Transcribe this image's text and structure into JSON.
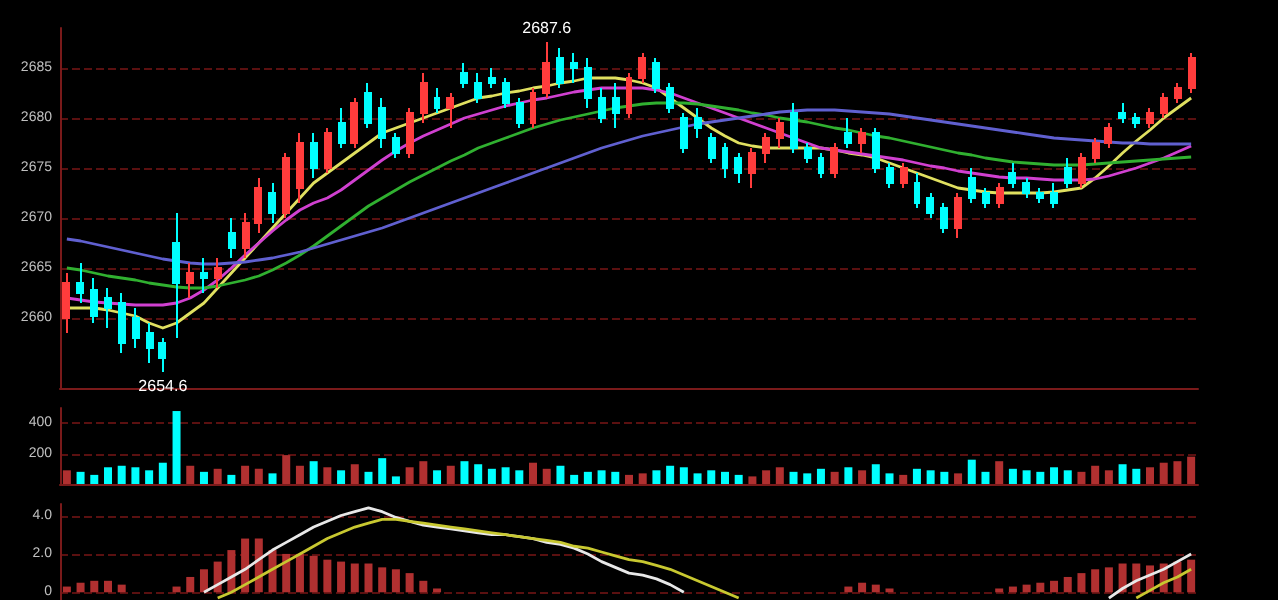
{
  "chart_data": [
    {
      "type": "candlestick",
      "categories": [
        null,
        null,
        null,
        null,
        null,
        null,
        null,
        null,
        null,
        null,
        null,
        null,
        null,
        null,
        null,
        null,
        null,
        null,
        null,
        null,
        null,
        null,
        null,
        null,
        null,
        null,
        null,
        null,
        null,
        null,
        null,
        null,
        null,
        null,
        null,
        null,
        null,
        null,
        null,
        null,
        null,
        null,
        null,
        null,
        null,
        null,
        null,
        null,
        null,
        null,
        null,
        null,
        null,
        null,
        null,
        null,
        null,
        null,
        null,
        null,
        null,
        null,
        null,
        null,
        null,
        null,
        null,
        null,
        null,
        null,
        null,
        null,
        null,
        null,
        null,
        null,
        null,
        null,
        null,
        null,
        null,
        null,
        null
      ],
      "ylim": [
        2653,
        2689
      ],
      "yticks": [
        2660,
        2665,
        2670,
        2675,
        2680,
        2685
      ],
      "grid": "y",
      "tick_labels": "y",
      "marker": "none",
      "annotations": [
        {
          "text": "2687.6",
          "y": 2687.6
        },
        {
          "text": "2654.6",
          "y": 2654.6
        }
      ],
      "series": [
        {
          "type": "line",
          "color": "#e0e060",
          "values": [
            2661,
            2661,
            2661,
            2660.8,
            2660.5,
            2660.2,
            2659.5,
            2659,
            2659.5,
            2660.5,
            2661.5,
            2663,
            2664.5,
            2666,
            2667.5,
            2669,
            2670.5,
            2672,
            2673.5,
            2674.5,
            2675.5,
            2676.5,
            2677.5,
            2678.5,
            2679,
            2679.5,
            2680,
            2680.5,
            2681,
            2681.5,
            2682,
            2682.2,
            2682.5,
            2682.7,
            2683,
            2683.2,
            2683.5,
            2683.7,
            2684,
            2684,
            2684,
            2683.8,
            2683.5,
            2683,
            2682,
            2681,
            2680,
            2679,
            2678.2,
            2677.5,
            2677.2,
            2677,
            2677,
            2677,
            2677,
            2677,
            2676.8,
            2676.5,
            2676.3,
            2676,
            2675.5,
            2675,
            2674.5,
            2674,
            2673.5,
            2673,
            2672.8,
            2672.6,
            2672.5,
            2672.5,
            2672.5,
            2672.5,
            2672.6,
            2672.8,
            2673,
            2674,
            2675.2,
            2676.5,
            2677.7,
            2678.8,
            2680,
            2681,
            2682
          ]
        },
        {
          "type": "line",
          "color": "#d040d0",
          "values": [
            2662,
            2661.8,
            2661.6,
            2661.5,
            2661.4,
            2661.3,
            2661.3,
            2661.3,
            2661.5,
            2662,
            2662.8,
            2663.8,
            2665,
            2666.3,
            2667.5,
            2668.7,
            2669.8,
            2670.8,
            2671.5,
            2672,
            2672.8,
            2673.8,
            2674.8,
            2675.8,
            2676.7,
            2677.5,
            2678.2,
            2678.8,
            2679.4,
            2680,
            2680.4,
            2680.8,
            2681.2,
            2681.5,
            2681.8,
            2682,
            2682.3,
            2682.6,
            2682.8,
            2683,
            2683,
            2683,
            2683,
            2682.8,
            2682.5,
            2682,
            2681.5,
            2681,
            2680.5,
            2680,
            2679.5,
            2679,
            2678.5,
            2678,
            2677.5,
            2677,
            2676.8,
            2676.6,
            2676.4,
            2676.2,
            2676,
            2675.8,
            2675.5,
            2675.2,
            2675,
            2674.7,
            2674.5,
            2674.3,
            2674.1,
            2674,
            2674,
            2673.9,
            2673.8,
            2673.8,
            2673.8,
            2673.9,
            2674.2,
            2674.6,
            2675,
            2675.5,
            2676,
            2676.6,
            2677.2
          ]
        },
        {
          "type": "line",
          "color": "#30b030",
          "values": [
            2665,
            2664.8,
            2664.5,
            2664.2,
            2664,
            2663.8,
            2663.5,
            2663.3,
            2663.1,
            2663,
            2663,
            2663.2,
            2663.5,
            2663.8,
            2664.2,
            2664.8,
            2665.5,
            2666.3,
            2667.2,
            2668.2,
            2669.2,
            2670.2,
            2671.2,
            2672,
            2672.8,
            2673.6,
            2674.3,
            2675,
            2675.7,
            2676.3,
            2677,
            2677.5,
            2678,
            2678.5,
            2679,
            2679.4,
            2679.8,
            2680.1,
            2680.4,
            2680.7,
            2681,
            2681.2,
            2681.4,
            2681.5,
            2681.5,
            2681.5,
            2681.4,
            2681.2,
            2681,
            2680.8,
            2680.5,
            2680.3,
            2680,
            2679.8,
            2679.6,
            2679.3,
            2679,
            2678.8,
            2678.5,
            2678.2,
            2678,
            2677.7,
            2677.4,
            2677.1,
            2676.8,
            2676.5,
            2676.3,
            2676,
            2675.8,
            2675.6,
            2675.5,
            2675.4,
            2675.3,
            2675.3,
            2675.3,
            2675.4,
            2675.5,
            2675.6,
            2675.7,
            2675.8,
            2675.9,
            2676,
            2676.1
          ]
        },
        {
          "type": "line",
          "color": "#6060d0",
          "values": [
            2667.9,
            2667.7,
            2667.4,
            2667.1,
            2666.8,
            2666.5,
            2666.2,
            2665.9,
            2665.7,
            2665.5,
            2665.4,
            2665.4,
            2665.5,
            2665.6,
            2665.8,
            2666,
            2666.3,
            2666.6,
            2667,
            2667.4,
            2667.8,
            2668.2,
            2668.6,
            2669,
            2669.5,
            2670,
            2670.5,
            2671,
            2671.5,
            2672,
            2672.5,
            2673,
            2673.5,
            2674,
            2674.5,
            2675,
            2675.5,
            2676,
            2676.5,
            2677,
            2677.4,
            2677.8,
            2678.2,
            2678.5,
            2678.8,
            2679.1,
            2679.4,
            2679.6,
            2679.8,
            2680,
            2680.2,
            2680.4,
            2680.6,
            2680.7,
            2680.8,
            2680.8,
            2680.8,
            2680.7,
            2680.6,
            2680.5,
            2680.4,
            2680.2,
            2680,
            2679.8,
            2679.6,
            2679.4,
            2679.2,
            2679,
            2678.8,
            2678.6,
            2678.4,
            2678.2,
            2678,
            2677.9,
            2677.8,
            2677.7,
            2677.6,
            2677.5,
            2677.5,
            2677.4,
            2677.4,
            2677.4,
            2677.4
          ]
        },
        {
          "colors": [
            "#ff3c3c",
            "#00ffff",
            "#00ffff",
            "#00ffff",
            "#00ffff",
            "#00ffff",
            "#00ffff",
            "#00ffff",
            "#00ffff",
            "#ff3c3c",
            "#00ffff",
            "#ff3c3c",
            "#00ffff",
            "#ff3c3c",
            "#ff3c3c",
            "#00ffff",
            "#ff3c3c",
            "#ff3c3c",
            "#00ffff",
            "#ff3c3c",
            "#00ffff",
            "#ff3c3c",
            "#00ffff",
            "#00ffff",
            "#00ffff",
            "#ff3c3c",
            "#ff3c3c",
            "#00ffff",
            "#ff3c3c",
            "#00ffff",
            "#00ffff",
            "#00ffff",
            "#00ffff",
            "#00ffff",
            "#ff3c3c",
            "#ff3c3c",
            "#00ffff",
            "#00ffff",
            "#00ffff",
            "#00ffff",
            "#00ffff",
            "#ff3c3c",
            "#ff3c3c",
            "#00ffff",
            "#00ffff",
            "#00ffff",
            "#00ffff",
            "#00ffff",
            "#00ffff",
            "#00ffff",
            "#ff3c3c",
            "#ff3c3c",
            "#ff3c3c",
            "#00ffff",
            "#00ffff",
            "#00ffff",
            "#ff3c3c",
            "#00ffff",
            "#ff3c3c",
            "#00ffff",
            "#00ffff",
            "#ff3c3c",
            "#00ffff",
            "#00ffff",
            "#00ffff",
            "#ff3c3c",
            "#00ffff",
            "#00ffff",
            "#ff3c3c",
            "#00ffff",
            "#00ffff",
            "#00ffff",
            "#00ffff",
            "#00ffff",
            "#ff3c3c",
            "#ff3c3c",
            "#ff3c3c",
            "#00ffff",
            "#00ffff",
            "#ff3c3c",
            "#ff3c3c",
            "#ff3c3c",
            "#ff3c3c"
          ],
          "ohlc": [
            [
              2660.0,
              2664.5,
              2658.5,
              2663.5
            ],
            [
              2663.5,
              2665.5,
              2661.5,
              2662.5
            ],
            [
              2662.8,
              2664.0,
              2659.5,
              2660.2
            ],
            [
              2662.0,
              2663.0,
              2659.0,
              2661.0
            ],
            [
              2661.5,
              2662.5,
              2656.5,
              2657.5
            ],
            [
              2660.0,
              2661.0,
              2657.0,
              2658.0
            ],
            [
              2658.5,
              2659.5,
              2655.5,
              2657.0
            ],
            [
              2657.5,
              2658.0,
              2654.6,
              2656.0
            ],
            [
              2667.5,
              2670.5,
              2658.0,
              2663.5
            ],
            [
              2663.5,
              2665.5,
              2662.0,
              2664.5
            ],
            [
              2664.5,
              2666.0,
              2662.5,
              2664.0
            ],
            [
              2664.0,
              2666.0,
              2663.0,
              2665.0
            ],
            [
              2668.5,
              2670.0,
              2666.0,
              2667.0
            ],
            [
              2667.0,
              2670.5,
              2666.0,
              2669.5
            ],
            [
              2669.5,
              2674.0,
              2668.5,
              2673.0
            ],
            [
              2672.5,
              2673.5,
              2669.5,
              2670.5
            ],
            [
              2670.5,
              2676.5,
              2670.0,
              2676.0
            ],
            [
              2673.0,
              2678.5,
              2671.5,
              2677.5
            ],
            [
              2677.5,
              2678.5,
              2674.0,
              2675.0
            ],
            [
              2675.0,
              2679.0,
              2674.5,
              2678.5
            ],
            [
              2679.5,
              2681.0,
              2677.0,
              2677.5
            ],
            [
              2677.5,
              2682.0,
              2677.0,
              2681.5
            ],
            [
              2682.5,
              2683.5,
              2679.0,
              2679.5
            ],
            [
              2681.0,
              2682.0,
              2677.0,
              2678.0
            ],
            [
              2678.0,
              2678.5,
              2676.0,
              2676.5
            ],
            [
              2676.5,
              2681.0,
              2676.0,
              2680.5
            ],
            [
              2680.5,
              2684.5,
              2679.5,
              2683.5
            ],
            [
              2682.0,
              2683.0,
              2680.5,
              2681.0
            ],
            [
              2681.0,
              2682.5,
              2679.0,
              2682.0
            ],
            [
              2684.5,
              2685.5,
              2683.0,
              2683.5
            ],
            [
              2683.5,
              2684.5,
              2681.5,
              2682.0
            ],
            [
              2684.0,
              2685.0,
              2683.0,
              2683.5
            ],
            [
              2683.5,
              2684.0,
              2681.0,
              2681.5
            ],
            [
              2681.5,
              2682.0,
              2679.0,
              2679.5
            ],
            [
              2679.5,
              2683.0,
              2679.0,
              2682.5
            ],
            [
              2682.5,
              2687.6,
              2682.0,
              2685.5
            ],
            [
              2686.0,
              2687.0,
              2683.0,
              2683.5
            ],
            [
              2685.5,
              2686.5,
              2683.5,
              2685.0
            ],
            [
              2685.0,
              2686.0,
              2681.0,
              2682.0
            ],
            [
              2682.0,
              2683.0,
              2679.5,
              2680.0
            ],
            [
              2682.0,
              2683.5,
              2679.0,
              2680.5
            ],
            [
              2680.5,
              2684.5,
              2680.0,
              2684.0
            ],
            [
              2684.0,
              2686.5,
              2683.5,
              2686.0
            ],
            [
              2685.5,
              2686.0,
              2682.5,
              2683.0
            ],
            [
              2683.0,
              2683.5,
              2680.5,
              2681.0
            ],
            [
              2680.0,
              2680.5,
              2676.5,
              2677.0
            ],
            [
              2680.0,
              2681.0,
              2678.0,
              2679.0
            ],
            [
              2678.0,
              2678.5,
              2675.5,
              2676.0
            ],
            [
              2677.0,
              2677.5,
              2674.0,
              2675.0
            ],
            [
              2676.0,
              2676.5,
              2673.5,
              2674.5
            ],
            [
              2674.5,
              2677.0,
              2673.0,
              2676.5
            ],
            [
              2676.5,
              2678.5,
              2675.5,
              2678.0
            ],
            [
              2678.0,
              2680.0,
              2677.0,
              2679.5
            ],
            [
              2680.5,
              2681.5,
              2676.5,
              2677.0
            ],
            [
              2677.0,
              2677.5,
              2675.5,
              2676.0
            ],
            [
              2676.0,
              2676.5,
              2674.0,
              2674.5
            ],
            [
              2674.5,
              2677.5,
              2674.0,
              2677.0
            ],
            [
              2678.5,
              2680.0,
              2677.0,
              2677.5
            ],
            [
              2677.5,
              2679.0,
              2676.5,
              2678.5
            ],
            [
              2678.5,
              2679.0,
              2674.5,
              2675.0
            ],
            [
              2675.0,
              2675.5,
              2673.0,
              2673.5
            ],
            [
              2673.5,
              2675.5,
              2673.0,
              2675.0
            ],
            [
              2673.5,
              2674.5,
              2671.0,
              2671.5
            ],
            [
              2672.0,
              2672.5,
              2670.0,
              2670.5
            ],
            [
              2671.0,
              2671.5,
              2668.5,
              2669.0
            ],
            [
              2669.0,
              2672.5,
              2668.0,
              2672.0
            ],
            [
              2674.0,
              2675.0,
              2671.5,
              2672.0
            ],
            [
              2672.5,
              2673.0,
              2671.0,
              2671.5
            ],
            [
              2671.5,
              2673.5,
              2671.0,
              2673.0
            ],
            [
              2674.5,
              2675.5,
              2673.0,
              2673.5
            ],
            [
              2673.5,
              2674.0,
              2672.0,
              2672.5
            ],
            [
              2672.5,
              2673.0,
              2671.5,
              2672.0
            ],
            [
              2672.5,
              2673.5,
              2671.0,
              2671.5
            ],
            [
              2675.0,
              2676.0,
              2673.0,
              2673.5
            ],
            [
              2673.5,
              2676.5,
              2673.0,
              2676.0
            ],
            [
              2676.0,
              2678.0,
              2675.5,
              2677.5
            ],
            [
              2677.5,
              2679.5,
              2677.0,
              2679.0
            ],
            [
              2680.5,
              2681.5,
              2679.5,
              2680.0
            ],
            [
              2680.0,
              2680.5,
              2679.0,
              2679.5
            ],
            [
              2679.5,
              2681.0,
              2679.0,
              2680.5
            ],
            [
              2680.5,
              2682.5,
              2680.0,
              2682.0
            ],
            [
              2682.0,
              2683.5,
              2681.5,
              2683.0
            ],
            [
              2683.0,
              2686.5,
              2682.5,
              2686.0
            ]
          ]
        }
      ]
    },
    {
      "type": "bar",
      "categories": [
        null,
        null,
        null,
        null,
        null,
        null,
        null,
        null,
        null,
        null,
        null,
        null,
        null,
        null,
        null,
        null,
        null,
        null,
        null,
        null,
        null,
        null,
        null,
        null,
        null,
        null,
        null,
        null,
        null,
        null,
        null,
        null,
        null,
        null,
        null,
        null,
        null,
        null,
        null,
        null,
        null,
        null,
        null,
        null,
        null,
        null,
        null,
        null,
        null,
        null,
        null,
        null,
        null,
        null,
        null,
        null,
        null,
        null,
        null,
        null,
        null,
        null,
        null,
        null,
        null,
        null,
        null,
        null,
        null,
        null,
        null,
        null,
        null,
        null,
        null,
        null,
        null,
        null,
        null,
        null,
        null,
        null,
        null
      ],
      "ylim": [
        0,
        500
      ],
      "yticks": [
        200,
        400
      ],
      "grid": "y",
      "tick_labels": "y",
      "values": [
        90,
        80,
        60,
        110,
        120,
        110,
        90,
        140,
        480,
        120,
        80,
        100,
        60,
        120,
        100,
        70,
        190,
        120,
        150,
        110,
        90,
        130,
        80,
        170,
        50,
        110,
        150,
        90,
        120,
        150,
        130,
        100,
        110,
        90,
        140,
        100,
        120,
        60,
        80,
        90,
        80,
        60,
        70,
        90,
        120,
        110,
        70,
        90,
        80,
        60,
        50,
        90,
        110,
        80,
        70,
        100,
        80,
        110,
        90,
        130,
        70,
        60,
        100,
        90,
        80,
        70,
        160,
        80,
        150,
        100,
        90,
        80,
        110,
        90,
        80,
        120,
        90,
        130,
        100,
        110,
        140,
        150,
        180
      ],
      "colors": [
        "#b03030",
        "#00ffff",
        "#00ffff",
        "#00ffff",
        "#00ffff",
        "#00ffff",
        "#00ffff",
        "#00ffff",
        "#00ffff",
        "#b03030",
        "#00ffff",
        "#b03030",
        "#00ffff",
        "#b03030",
        "#b03030",
        "#00ffff",
        "#b03030",
        "#b03030",
        "#00ffff",
        "#b03030",
        "#00ffff",
        "#b03030",
        "#00ffff",
        "#00ffff",
        "#00ffff",
        "#b03030",
        "#b03030",
        "#00ffff",
        "#b03030",
        "#00ffff",
        "#00ffff",
        "#00ffff",
        "#00ffff",
        "#00ffff",
        "#b03030",
        "#b03030",
        "#00ffff",
        "#00ffff",
        "#00ffff",
        "#00ffff",
        "#00ffff",
        "#b03030",
        "#b03030",
        "#00ffff",
        "#00ffff",
        "#00ffff",
        "#00ffff",
        "#00ffff",
        "#00ffff",
        "#00ffff",
        "#b03030",
        "#b03030",
        "#b03030",
        "#00ffff",
        "#00ffff",
        "#00ffff",
        "#b03030",
        "#00ffff",
        "#b03030",
        "#00ffff",
        "#00ffff",
        "#b03030",
        "#00ffff",
        "#00ffff",
        "#00ffff",
        "#b03030",
        "#00ffff",
        "#00ffff",
        "#b03030",
        "#00ffff",
        "#00ffff",
        "#00ffff",
        "#00ffff",
        "#00ffff",
        "#b03030",
        "#b03030",
        "#b03030",
        "#00ffff",
        "#00ffff",
        "#b03030",
        "#b03030",
        "#b03030",
        "#b03030"
      ]
    },
    {
      "type": "line",
      "categories": [
        null,
        null,
        null,
        null,
        null,
        null,
        null,
        null,
        null,
        null,
        null,
        null,
        null,
        null,
        null,
        null,
        null,
        null,
        null,
        null,
        null,
        null,
        null,
        null,
        null,
        null,
        null,
        null,
        null,
        null,
        null,
        null,
        null,
        null,
        null,
        null,
        null,
        null,
        null,
        null,
        null,
        null,
        null,
        null,
        null,
        null,
        null,
        null,
        null,
        null,
        null,
        null,
        null,
        null,
        null,
        null,
        null,
        null,
        null,
        null,
        null,
        null,
        null,
        null,
        null,
        null,
        null,
        null,
        null,
        null,
        null,
        null,
        null,
        null,
        null,
        null,
        null,
        null,
        null,
        null,
        null,
        null,
        null
      ],
      "ylim": [
        -0.4,
        4.6
      ],
      "yticks": [
        0,
        {
          "value": 2,
          "label": "2.0"
        },
        {
          "value": 4,
          "label": "4.0"
        }
      ],
      "grid": "y",
      "tick_labels": "y",
      "marker": "none",
      "series": [
        {
          "type": "bar",
          "color": "#b03030",
          "values": [
            0.3,
            0.5,
            0.6,
            0.6,
            0.4,
            null,
            null,
            null,
            0.3,
            0.8,
            1.2,
            1.6,
            2.2,
            2.8,
            2.8,
            2.2,
            2.0,
            2.0,
            1.9,
            1.7,
            1.6,
            1.5,
            1.5,
            1.3,
            1.2,
            1.0,
            0.6,
            0.2,
            null,
            null,
            null,
            null,
            null,
            null,
            null,
            null,
            null,
            null,
            null,
            null,
            null,
            null,
            null,
            null,
            null,
            null,
            null,
            null,
            null,
            null,
            null,
            null,
            null,
            null,
            null,
            null,
            null,
            0.3,
            0.5,
            0.4,
            0.2,
            null,
            null,
            null,
            null,
            null,
            null,
            null,
            0.2,
            0.3,
            0.4,
            0.5,
            0.6,
            0.8,
            1.0,
            1.2,
            1.3,
            1.5,
            1.5,
            1.4,
            1.5,
            1.6,
            1.7
          ]
        },
        {
          "color": "#e8e8e8",
          "values": [
            null,
            null,
            null,
            null,
            null,
            null,
            null,
            null,
            null,
            null,
            0.0,
            0.4,
            0.8,
            1.2,
            1.7,
            2.2,
            2.6,
            3.0,
            3.4,
            3.7,
            4.0,
            4.2,
            4.4,
            4.2,
            3.9,
            3.7,
            3.5,
            3.4,
            3.3,
            3.2,
            3.1,
            3.0,
            3.0,
            2.9,
            2.8,
            2.6,
            2.5,
            2.3,
            2.0,
            1.6,
            1.3,
            1.0,
            0.9,
            0.7,
            0.4,
            0.0,
            null,
            null,
            null,
            null,
            null,
            null,
            null,
            null,
            null,
            null,
            null,
            null,
            null,
            null,
            null,
            null,
            null,
            null,
            null,
            null,
            null,
            null,
            null,
            null,
            null,
            null,
            null,
            null,
            null,
            null,
            -0.3,
            0.2,
            0.6,
            0.9,
            1.2,
            1.6,
            2.0
          ]
        },
        {
          "color": "#c8c830",
          "values": [
            null,
            null,
            null,
            null,
            null,
            null,
            null,
            null,
            null,
            null,
            null,
            -0.3,
            0.0,
            0.4,
            0.8,
            1.2,
            1.6,
            2.0,
            2.4,
            2.8,
            3.1,
            3.4,
            3.6,
            3.8,
            3.8,
            3.7,
            3.6,
            3.5,
            3.4,
            3.3,
            3.2,
            3.1,
            3.0,
            2.9,
            2.8,
            2.7,
            2.6,
            2.4,
            2.3,
            2.1,
            1.9,
            1.7,
            1.6,
            1.4,
            1.2,
            0.9,
            0.6,
            0.3,
            0.0,
            -0.3,
            null,
            null,
            null,
            null,
            null,
            null,
            null,
            null,
            null,
            null,
            null,
            null,
            null,
            null,
            null,
            null,
            null,
            null,
            null,
            null,
            null,
            null,
            null,
            null,
            null,
            null,
            null,
            null,
            -0.3,
            0.1,
            0.5,
            0.8,
            1.2
          ]
        }
      ]
    }
  ]
}
